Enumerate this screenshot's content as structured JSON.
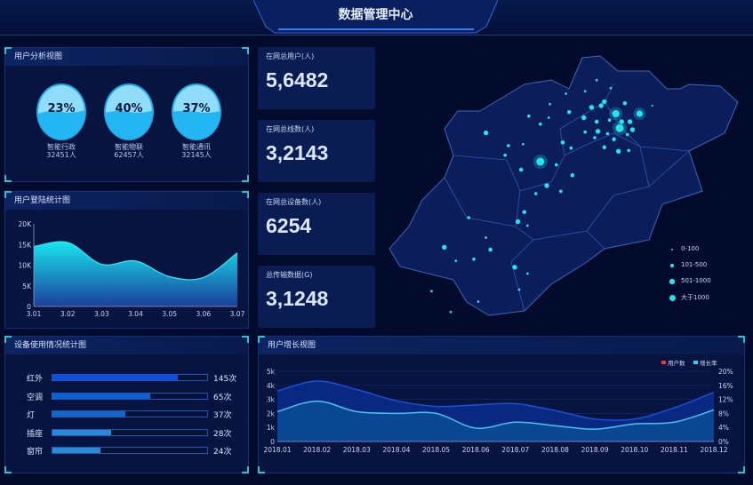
{
  "header": {
    "title": "数据管理中心"
  },
  "user_analysis": {
    "title": "用户分析视图",
    "gauges": [
      {
        "percent": "23%",
        "name": "智能行政",
        "count": "32451人"
      },
      {
        "percent": "40%",
        "name": "智能物联",
        "count": "62457人"
      },
      {
        "percent": "37%",
        "name": "智能通讯",
        "count": "32145人"
      }
    ]
  },
  "stats": [
    {
      "label": "在网总用户(人)",
      "value": "5,6482"
    },
    {
      "label": "在网总线数(人)",
      "value": "3,2143"
    },
    {
      "label": "在网总设备数(人)",
      "value": "6254"
    },
    {
      "label": "总传输数据(G)",
      "value": "3,1248"
    }
  ],
  "map": {
    "legend": [
      {
        "label": "0-100"
      },
      {
        "label": "101-500"
      },
      {
        "label": "501-1000"
      },
      {
        "label": "大于1000"
      }
    ],
    "dot_color": "#22e5f0"
  },
  "device_usage": {
    "title": "设备使用情况统计图",
    "items": [
      {
        "name": "红外",
        "value": "145次",
        "fill_percent": 81,
        "color": "#0a4fe0"
      },
      {
        "name": "空调",
        "value": "65次",
        "fill_percent": 63,
        "color": "#0c62d0"
      },
      {
        "name": "灯",
        "value": "37次",
        "fill_percent": 47,
        "color": "#1466c8"
      },
      {
        "name": "插座",
        "value": "28次",
        "fill_percent": 38,
        "color": "#2a8ad8"
      },
      {
        "name": "窗帘",
        "value": "24次",
        "fill_percent": 31,
        "color": "#2a8ad8"
      }
    ]
  },
  "chart_data": [
    {
      "type": "area",
      "title": "用户登陆统计图",
      "categories": [
        "3.01",
        "3.02",
        "3.03",
        "3.04",
        "3.05",
        "3.06",
        "3.07"
      ],
      "values": [
        14500,
        15500,
        10200,
        11000,
        7200,
        7000,
        13000
      ],
      "yticks": [
        "0",
        "5K",
        "10K",
        "15K",
        "20K"
      ],
      "ylim": [
        0,
        20000
      ],
      "colors": [
        "#17e6ee",
        "#1b3f9a"
      ]
    },
    {
      "type": "area",
      "title": "用户增长视图",
      "categories": [
        "2018.01",
        "2018.02",
        "2018.03",
        "2018.04",
        "2018.05",
        "2018.06",
        "2018.07",
        "2018.08",
        "2018.09",
        "2018.10",
        "2018.11",
        "2018.12"
      ],
      "series": [
        {
          "name": "用户数",
          "axis": "left",
          "values": [
            3600,
            4300,
            3700,
            2900,
            2500,
            2600,
            2700,
            2200,
            1600,
            1600,
            2400,
            3500
          ],
          "line_color": "#1d4fd6",
          "fill_color": "#0a2a8a"
        },
        {
          "name": "增长率",
          "axis": "right",
          "values": [
            8.5,
            11.5,
            8.5,
            8,
            8,
            3.8,
            5.5,
            4.5,
            3.5,
            5,
            5.5,
            9
          ],
          "line_color": "#4fc0ef",
          "fill_color": "#0b4a94"
        }
      ],
      "legend_colors": [
        "#e8344e",
        "#2fd0ee"
      ],
      "yticks_left": [
        "0",
        "1k",
        "2k",
        "3k",
        "4k",
        "5k"
      ],
      "yticks_right": [
        "0%",
        "4%",
        "8%",
        "12%",
        "16%",
        "20%"
      ],
      "ylim_left": [
        0,
        5000
      ],
      "ylim_right": [
        0,
        20
      ],
      "legend_position": "top-right"
    }
  ]
}
